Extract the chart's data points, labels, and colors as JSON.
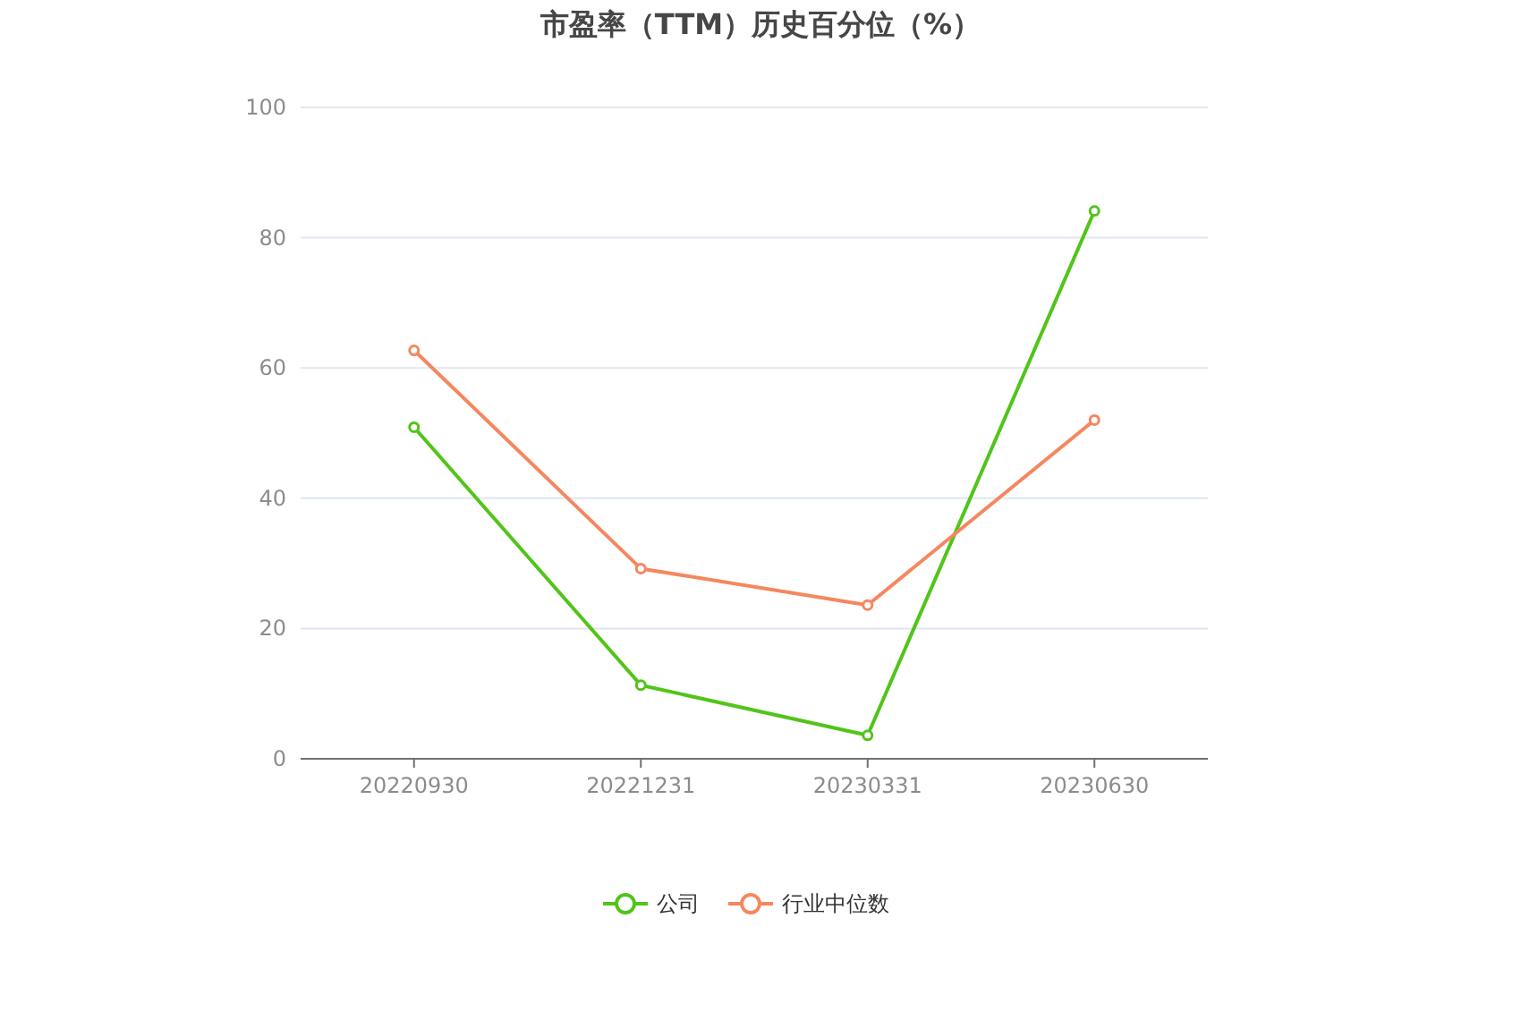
{
  "chart_data": {
    "type": "line",
    "title": "市盈率（TTM）历史百分位（%）",
    "categories": [
      "20220930",
      "20221231",
      "20230331",
      "20230630"
    ],
    "series": [
      {
        "name": "公司",
        "color": "#52c41a",
        "values": [
          50.9,
          11.3,
          3.6,
          84.1
        ]
      },
      {
        "name": "行业中位数",
        "color": "#f5875f",
        "values": [
          62.7,
          29.2,
          23.6,
          52.0
        ]
      }
    ],
    "ylim": [
      0,
      100
    ],
    "yticks": [
      0,
      20,
      40,
      60,
      80,
      100
    ],
    "grid": "y",
    "legend": "bottom",
    "marker": "circle",
    "line_style": "solid"
  }
}
